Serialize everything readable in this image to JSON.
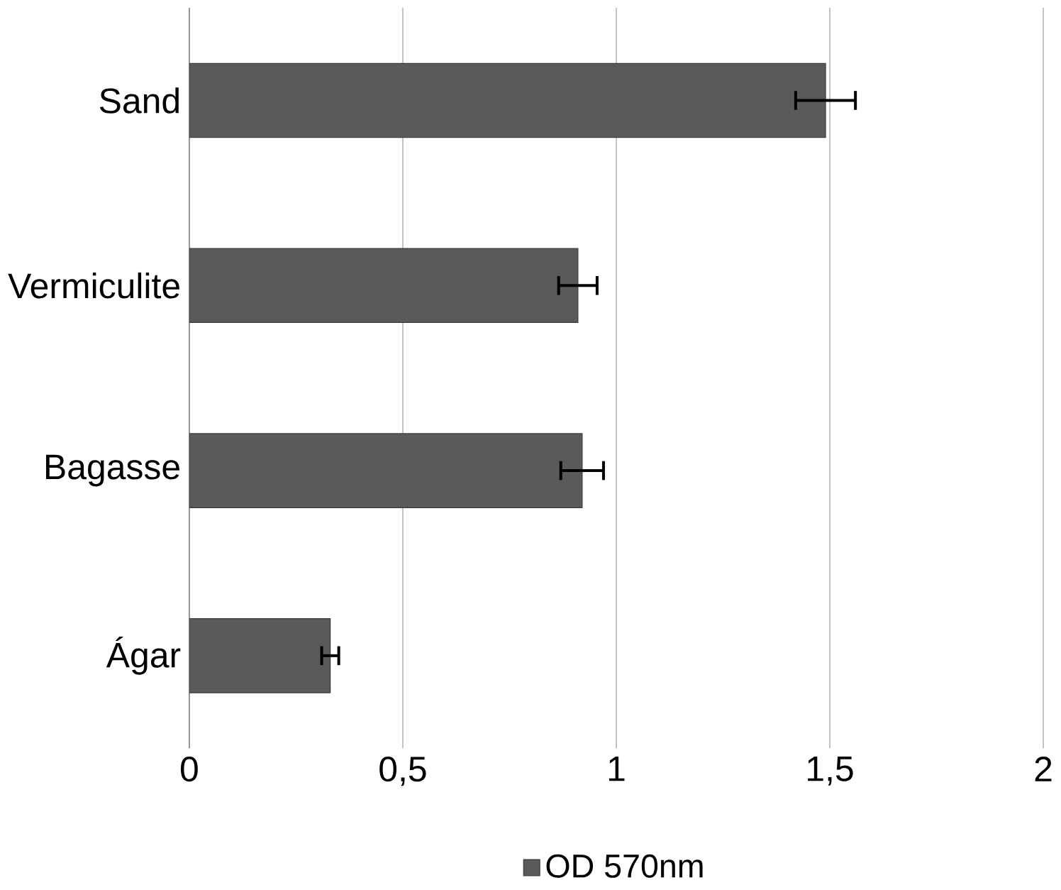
{
  "chart_data": {
    "type": "bar",
    "orientation": "horizontal",
    "categories": [
      "Sand",
      "Vermiculite",
      "Bagasse",
      "Ágar"
    ],
    "series": [
      {
        "name": "OD 570nm",
        "color": "#5a5a5a",
        "values": [
          1.49,
          0.91,
          0.92,
          0.33
        ],
        "errors": [
          0.07,
          0.045,
          0.05,
          0.02
        ]
      }
    ],
    "xlim": [
      0,
      2
    ],
    "xticks": [
      0,
      {
        "value": 0.5,
        "label": "0,5"
      },
      1,
      {
        "value": 1.5,
        "label": "1,5"
      },
      2
    ],
    "grid": "x",
    "legend": "bottom"
  }
}
